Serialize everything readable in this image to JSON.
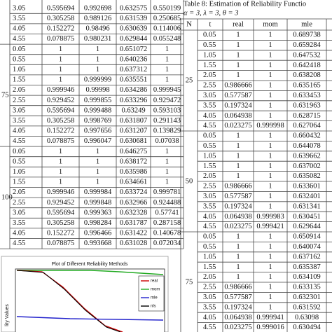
{
  "left_table": {
    "groups": [
      {
        "rows": [
          [
            "3.05",
            "0.595694",
            "0.992698",
            "0.632575",
            "0.550199"
          ],
          [
            "3.55",
            "0.305258",
            "0.989126",
            "0.631539",
            "0.250685"
          ],
          [
            "4.05",
            "0.152272",
            "0.98496",
            "0.630639",
            "0.114006"
          ],
          [
            "4.55",
            "0.078875",
            "0.980231",
            "0.629844",
            "0.055248"
          ]
        ]
      },
      {
        "N": "75",
        "rows": [
          [
            "0.05",
            "1",
            "1",
            "0.651072",
            "1"
          ],
          [
            "0.55",
            "1",
            "1",
            "0.640236",
            "1"
          ],
          [
            "1.05",
            "1",
            "1",
            "0.637312",
            "1"
          ],
          [
            "1.55",
            "1",
            "0.999999",
            "0.635551",
            "1"
          ],
          [
            "2.05",
            "0.999946",
            "0.99998",
            "0.634286",
            "0.999945"
          ],
          [
            "2.55",
            "0.929452",
            "0.999855",
            "0.633296",
            "0.929472"
          ],
          [
            "3.05",
            "0.595694",
            "0.999488",
            "0.63249",
            "0.593103"
          ],
          [
            "3.55",
            "0.305258",
            "0.998769",
            "0.631807",
            "0.291143"
          ],
          [
            "4.05",
            "0.152272",
            "0.997656",
            "0.631207",
            "0.139829"
          ],
          [
            "4.55",
            "0.078875",
            "0.996047",
            "0.630681",
            "0.07038"
          ]
        ]
      },
      {
        "N": "100",
        "rows": [
          [
            "0.05",
            "1",
            "1",
            "0.646275",
            "1"
          ],
          [
            "0.55",
            "1",
            "1",
            "0.638172",
            "1"
          ],
          [
            "1.05",
            "1",
            "1",
            "0.635986",
            "1"
          ],
          [
            "1.55",
            "1",
            "1",
            "0.634661",
            "1"
          ],
          [
            "2.05",
            "0.999946",
            "0.999984",
            "0.633724",
            "0.999781"
          ],
          [
            "2.55",
            "0.929452",
            "0.999848",
            "0.632966",
            "0.924488"
          ],
          [
            "3.05",
            "0.595694",
            "0.999363",
            "0.632328",
            "0.57741"
          ],
          [
            "3.55",
            "0.305258",
            "0.998284",
            "0.631787",
            "0.287158"
          ],
          [
            "4.05",
            "0.152272",
            "0.996466",
            "0.631422",
            "0.140678"
          ],
          [
            "4.55",
            "0.078875",
            "0.993668",
            "0.631028",
            "0.072034"
          ]
        ]
      }
    ]
  },
  "right_table": {
    "caption": "Table 8: Estimation of Reliability Functio",
    "params": "α = 3, λ = 3, θ = 3",
    "header": [
      "N",
      "t",
      "real",
      "mom",
      "mle"
    ],
    "groups": [
      {
        "N": "25",
        "rows": [
          [
            "0.05",
            "1",
            "1",
            "0.689738"
          ],
          [
            "0.55",
            "1",
            "1",
            "0.659284"
          ],
          [
            "1.05",
            "1",
            "1",
            "0.647532"
          ],
          [
            "1.55",
            "1",
            "1",
            "0.642418"
          ],
          [
            "2.05",
            "1",
            "1",
            "0.638208"
          ],
          [
            "2.55",
            "0.986666",
            "1",
            "0.635165"
          ],
          [
            "3.05",
            "0.577587",
            "1",
            "0.633453"
          ],
          [
            "3.55",
            "0.197324",
            "1",
            "0.631963"
          ],
          [
            "4.05",
            "0.064938",
            "1",
            "0.628715"
          ],
          [
            "4.55",
            "0.023275",
            "0.999998",
            "0.627064"
          ]
        ]
      },
      {
        "N": "50",
        "rows": [
          [
            "0.05",
            "1",
            "1",
            "0.660432"
          ],
          [
            "0.55",
            "1",
            "1",
            "0.644078"
          ],
          [
            "1.05",
            "1",
            "1",
            "0.639662"
          ],
          [
            "1.55",
            "1",
            "1",
            "0.637002"
          ],
          [
            "2.05",
            "1",
            "1",
            "0.635082"
          ],
          [
            "2.55",
            "0.986666",
            "1",
            "0.633601"
          ],
          [
            "3.05",
            "0.577587",
            "1",
            "0.632401"
          ],
          [
            "3.55",
            "0.197324",
            "1",
            "0.631341"
          ],
          [
            "4.05",
            "0.064938",
            "0.999983",
            "0.630451"
          ],
          [
            "4.55",
            "0.023275",
            "0.999421",
            "0.629644"
          ]
        ]
      },
      {
        "N": "75",
        "rows": [
          [
            "0.05",
            "1",
            "1",
            "0.650914"
          ],
          [
            "0.55",
            "1",
            "1",
            "0.640074"
          ],
          [
            "1.05",
            "1",
            "1",
            "0.637162"
          ],
          [
            "1.55",
            "1",
            "1",
            "0.635387"
          ],
          [
            "2.05",
            "1",
            "1",
            "0.634109"
          ],
          [
            "2.55",
            "0.986666",
            "1",
            "0.633135"
          ],
          [
            "3.05",
            "0.577587",
            "1",
            "0.632301"
          ],
          [
            "3.55",
            "0.197324",
            "1",
            "0.631592"
          ],
          [
            "4.05",
            "0.064938",
            "0.999941",
            "0.63098"
          ],
          [
            "4.55",
            "0.023275",
            "0.999016",
            "0.630494"
          ]
        ]
      }
    ]
  },
  "plot": {
    "title": "Plot of Different Reliability Methods",
    "y_label": "lity Values",
    "legend": [
      "real",
      "mom",
      "mle",
      "nls"
    ]
  }
}
